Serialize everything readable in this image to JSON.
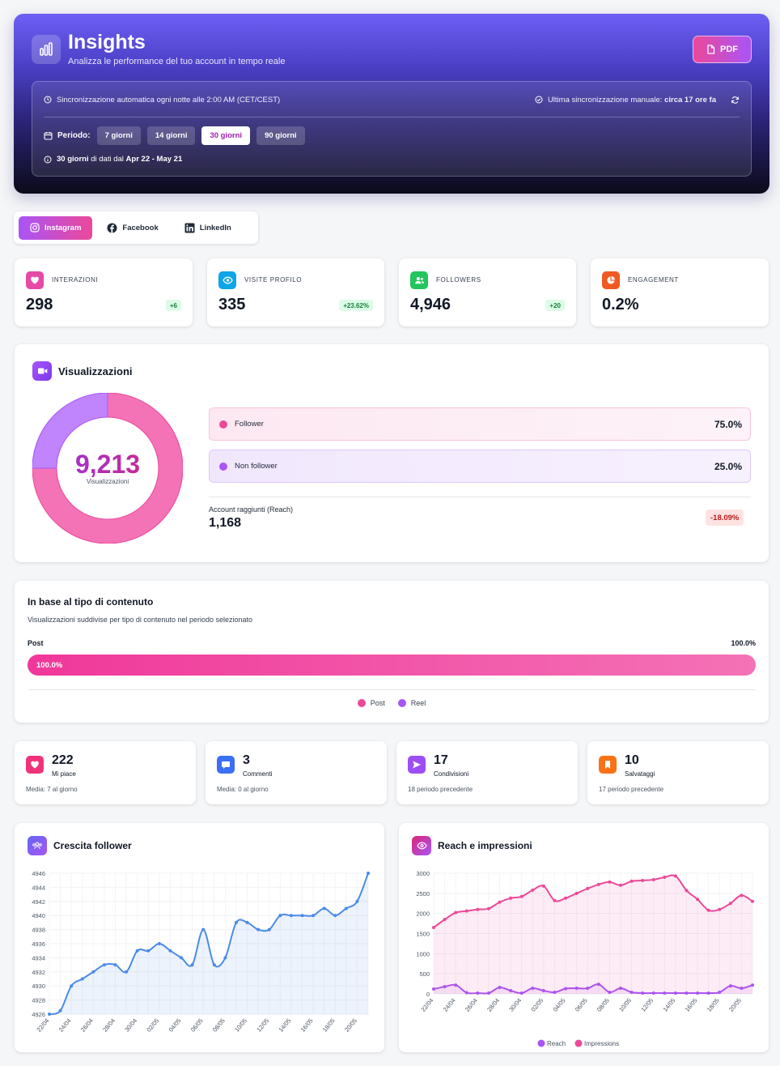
{
  "header": {
    "title": "Insights",
    "subtitle": "Analizza le performance del tuo account in tempo reale",
    "pdf_label": "PDF",
    "sync_auto": "Sincronizzazione automatica ogni notte alle 2:00 AM (CET/CEST)",
    "sync_manual_prefix": "Ultima sincronizzazione manuale: ",
    "sync_manual_value": "circa 17 ore fa",
    "period_label": "Periodo:",
    "periods": [
      "7 giorni",
      "14 giorni",
      "30 giorni",
      "90 giorni"
    ],
    "active_period": "30 giorni",
    "range_bold": "30 giorni",
    "range_mid": " di dati dal ",
    "range_dates": "Apr 22 - May 21"
  },
  "tabs": [
    "Instagram",
    "Facebook",
    "LinkedIn"
  ],
  "kpis": [
    {
      "label": "INTERAZIONI",
      "value": "298",
      "badge": "+6",
      "color": "#ec4899"
    },
    {
      "label": "VISITE PROFILO",
      "value": "335",
      "badge": "+23.62%",
      "color": "#0ea5e9"
    },
    {
      "label": "FOLLOWERS",
      "value": "4,946",
      "badge": "+20",
      "color": "#22c55e"
    },
    {
      "label": "ENGAGEMENT",
      "value": "0.2%",
      "badge": "",
      "color": "#f97316"
    }
  ],
  "views": {
    "title": "Visualizzazioni",
    "total": "9,213",
    "total_label": "Visualizzazioni",
    "follower_label": "Follower",
    "follower_pct": "75.0%",
    "nonfollower_label": "Non follower",
    "nonfollower_pct": "25.0%",
    "reach_label": "Account raggiunti (Reach)",
    "reach_value": "1,168",
    "reach_change": "-18.09%",
    "follower_share": 0.75
  },
  "content_type": {
    "title": "In base al tipo di contenuto",
    "subtitle": "Visualizzazioni suddivise per tipo di contenuto nel periodo selezionato",
    "row_label": "Post",
    "row_value": "100.0%",
    "bar_text": "100.0%",
    "legend": [
      "Post",
      "Reel"
    ],
    "post_share": 1.0
  },
  "stats": [
    {
      "value": "222",
      "label": "Mi piace",
      "sub": "Media: 7 al giorno",
      "color": "#ec4899"
    },
    {
      "value": "3",
      "label": "Commenti",
      "sub": "Media: 0 al giorno",
      "color": "#3b82f6"
    },
    {
      "value": "17",
      "label": "Condivisioni",
      "sub": "18 periodo precedente",
      "color": "#a855f7"
    },
    {
      "value": "10",
      "label": "Salvataggi",
      "sub": "17 periodo precedente",
      "color": "#f97316"
    }
  ],
  "follower_chart": {
    "title": "Crescita follower"
  },
  "reach_chart": {
    "title": "Reach e impressioni"
  },
  "chart_data": [
    {
      "type": "area",
      "title": "Crescita follower",
      "x": [
        "22/04",
        "23/04",
        "24/04",
        "25/04",
        "26/04",
        "27/04",
        "28/04",
        "29/04",
        "30/04",
        "01/05",
        "02/05",
        "03/05",
        "04/05",
        "05/05",
        "06/05",
        "07/05",
        "08/05",
        "09/05",
        "10/05",
        "11/05",
        "12/05",
        "13/05",
        "14/05",
        "15/05",
        "16/05",
        "17/05",
        "18/05",
        "19/05",
        "20/05",
        "21/05"
      ],
      "xticks": [
        "22/04",
        "24/04",
        "26/04",
        "28/04",
        "30/04",
        "02/05",
        "04/05",
        "06/05",
        "08/05",
        "10/05",
        "12/05",
        "14/05",
        "16/05",
        "18/05",
        "20/05"
      ],
      "series": [
        {
          "values": [
            4926,
            4926.5,
            4930,
            4931,
            4932,
            4933,
            4933,
            4932,
            4935,
            4935,
            4936,
            4935,
            4934,
            4933,
            4938,
            4933,
            4934,
            4939,
            4939,
            4938,
            4938,
            4940,
            4940,
            4940,
            4940,
            4941,
            4940,
            4941,
            4942,
            4946
          ]
        }
      ],
      "ylim": [
        4926,
        4946
      ],
      "yticks": [
        4926,
        4928,
        4930,
        4932,
        4934,
        4936,
        4938,
        4940,
        4942,
        4944,
        4946
      ],
      "color": "#4a8be8"
    },
    {
      "type": "area",
      "title": "Reach e impressioni",
      "x": [
        "22/04",
        "23/04",
        "24/04",
        "25/04",
        "26/04",
        "27/04",
        "28/04",
        "29/04",
        "30/04",
        "01/05",
        "02/05",
        "03/05",
        "04/05",
        "05/05",
        "06/05",
        "07/05",
        "08/05",
        "09/05",
        "10/05",
        "11/05",
        "12/05",
        "13/05",
        "14/05",
        "15/05",
        "16/05",
        "17/05",
        "18/05",
        "19/05",
        "20/05",
        "21/05"
      ],
      "xticks": [
        "22/04",
        "24/04",
        "26/04",
        "28/04",
        "30/04",
        "02/05",
        "04/05",
        "06/05",
        "08/05",
        "10/05",
        "12/05",
        "14/05",
        "16/05",
        "18/05",
        "20/05"
      ],
      "series": [
        {
          "name": "Reach",
          "color": "#a855f7",
          "values": [
            120,
            180,
            220,
            30,
            20,
            20,
            160,
            80,
            20,
            140,
            80,
            40,
            130,
            140,
            140,
            240,
            40,
            140,
            40,
            20,
            20,
            20,
            20,
            20,
            20,
            20,
            40,
            200,
            140,
            220
          ]
        },
        {
          "name": "Impressions",
          "color": "#ec4899",
          "values": [
            1650,
            1850,
            2020,
            2060,
            2100,
            2120,
            2280,
            2380,
            2420,
            2580,
            2680,
            2320,
            2380,
            2500,
            2620,
            2720,
            2780,
            2700,
            2800,
            2820,
            2840,
            2900,
            2930,
            2570,
            2350,
            2080,
            2100,
            2250,
            2450,
            2300
          ]
        }
      ],
      "ylim": [
        0,
        3000
      ],
      "yticks": [
        0,
        500,
        1000,
        1500,
        2000,
        2500,
        3000
      ],
      "legend": [
        "Reach",
        "Impressions"
      ]
    }
  ]
}
